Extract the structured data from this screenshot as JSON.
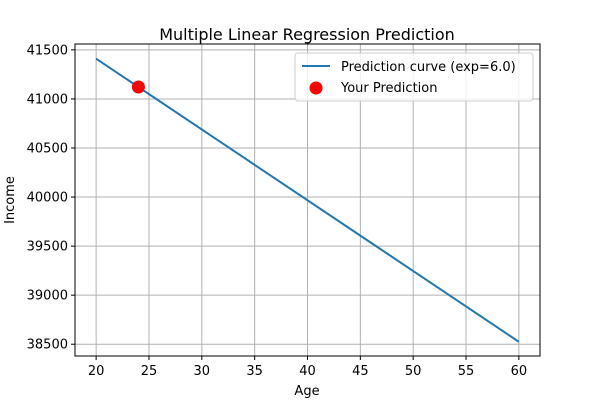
{
  "chart_data": {
    "type": "line",
    "title": "Multiple Linear Regression Prediction",
    "xlabel": "Age",
    "ylabel": "Income",
    "xlim": [
      18,
      62
    ],
    "ylim": [
      38380,
      41560
    ],
    "xticks": [
      20,
      25,
      30,
      35,
      40,
      45,
      50,
      55,
      60
    ],
    "yticks": [
      38500,
      39000,
      39500,
      40000,
      40500,
      41000,
      41500
    ],
    "grid": true,
    "legend_position": "top-right",
    "series": [
      {
        "name": "Prediction curve (exp=6.0)",
        "kind": "line",
        "color": "#1f77b4",
        "x": [
          20,
          60
        ],
        "y": [
          41410,
          38525
        ]
      },
      {
        "name": "Your Prediction",
        "kind": "scatter",
        "color": "#ff0000",
        "x": [
          24
        ],
        "y": [
          41122
        ]
      }
    ]
  }
}
